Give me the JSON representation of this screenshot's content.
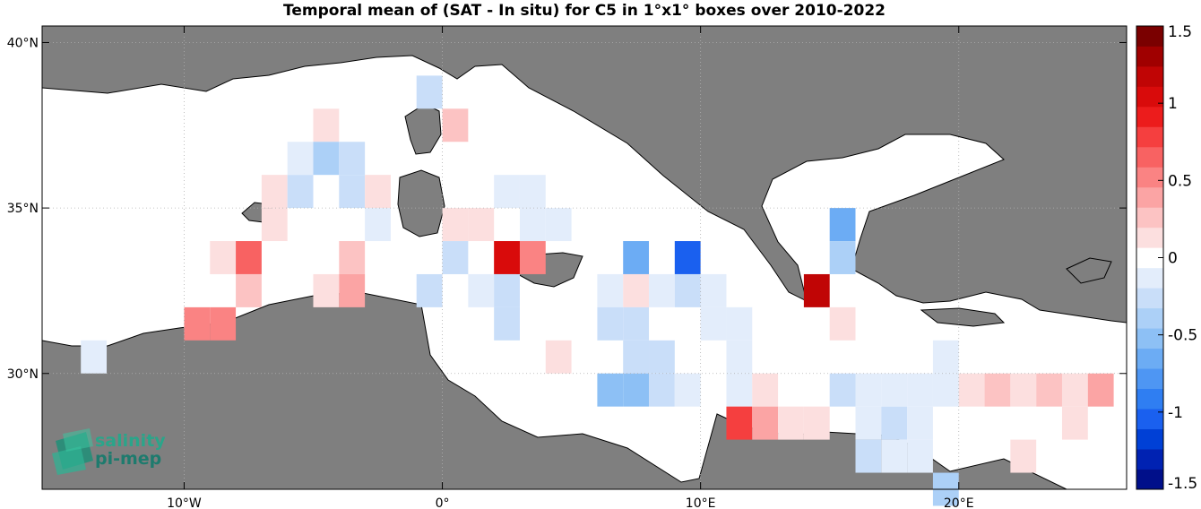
{
  "chart_data": {
    "type": "heatmap",
    "title": "Temporal mean of (SAT - In situ) for C5 in 1°x1° boxes over 2010-2022",
    "xlabel": "",
    "ylabel": "",
    "xlim": [
      -15.5,
      26.5
    ],
    "ylim": [
      26.5,
      40.5
    ],
    "x_ticks": [
      {
        "value": -10,
        "label": "10°W"
      },
      {
        "value": 0,
        "label": "0°"
      },
      {
        "value": 10,
        "label": "10°E"
      },
      {
        "value": 20,
        "label": "20°E"
      }
    ],
    "y_ticks": [
      {
        "value": 30,
        "label": "30°N"
      },
      {
        "value": 35,
        "label": "35°N"
      },
      {
        "value": 40,
        "label": "40°N"
      }
    ],
    "grid": "dotted",
    "colorbar": {
      "min": -1.5,
      "max": 1.5,
      "ticks": [
        {
          "value": 1.5,
          "label": "1.5"
        },
        {
          "value": 1,
          "label": "1"
        },
        {
          "value": 0.5,
          "label": "0.5"
        },
        {
          "value": 0,
          "label": "0"
        },
        {
          "value": -0.5,
          "label": "-0.5"
        },
        {
          "value": -1,
          "label": "-1"
        },
        {
          "value": -1.5,
          "label": "-1.5"
        }
      ],
      "colors": [
        "#000f8a",
        "#0022b2",
        "#0040d6",
        "#1a60ef",
        "#2f7ef2",
        "#4e96f3",
        "#6cacf4",
        "#8dc0f5",
        "#acd0f7",
        "#c9def9",
        "#e3edfb",
        "#ffffff",
        "#fcdfdf",
        "#fcc3c3",
        "#fba4a4",
        "#fa8383",
        "#f86262",
        "#f53f3f",
        "#ec1c1c",
        "#d90b0b",
        "#c00505",
        "#a00000",
        "#7a0000"
      ]
    },
    "cells": [
      {
        "lon": -14,
        "lat": 30.5,
        "value": -0.1
      },
      {
        "lon": -10,
        "lat": 31.5,
        "value": 0.55
      },
      {
        "lon": -9,
        "lat": 31.5,
        "value": 0.55
      },
      {
        "lon": -9,
        "lat": 33.5,
        "value": 0.15
      },
      {
        "lon": -8,
        "lat": 33.5,
        "value": 0.6
      },
      {
        "lon": -8,
        "lat": 32.5,
        "value": 0.3
      },
      {
        "lon": -7,
        "lat": 35.5,
        "value": 0.15
      },
      {
        "lon": -7,
        "lat": 34.5,
        "value": 0.1
      },
      {
        "lon": -5,
        "lat": 37.5,
        "value": 0.1
      },
      {
        "lon": -6,
        "lat": 36.5,
        "value": -0.1
      },
      {
        "lon": -5,
        "lat": 36.5,
        "value": -0.45
      },
      {
        "lon": -4,
        "lat": 36.5,
        "value": -0.3
      },
      {
        "lon": -6,
        "lat": 35.5,
        "value": -0.25
      },
      {
        "lon": -4,
        "lat": 35.5,
        "value": -0.2
      },
      {
        "lon": -3,
        "lat": 35.5,
        "value": 0.1
      },
      {
        "lon": -3,
        "lat": 34.5,
        "value": -0.1
      },
      {
        "lon": -4,
        "lat": 33.5,
        "value": 0.25
      },
      {
        "lon": -5,
        "lat": 32.5,
        "value": 0.15
      },
      {
        "lon": -4,
        "lat": 32.5,
        "value": 0.4
      },
      {
        "lon": -1,
        "lat": 38.5,
        "value": -0.2
      },
      {
        "lon": 0,
        "lat": 37.5,
        "value": 0.3
      },
      {
        "lon": -1,
        "lat": 32.5,
        "value": -0.2
      },
      {
        "lon": 0,
        "lat": 33.5,
        "value": -0.2
      },
      {
        "lon": 0,
        "lat": 34.5,
        "value": 0.1
      },
      {
        "lon": 1,
        "lat": 34.5,
        "value": 0.1
      },
      {
        "lon": 2,
        "lat": 35.5,
        "value": -0.1
      },
      {
        "lon": 3,
        "lat": 35.5,
        "value": -0.1
      },
      {
        "lon": 3,
        "lat": 34.5,
        "value": -0.1
      },
      {
        "lon": 4,
        "lat": 34.5,
        "value": -0.1
      },
      {
        "lon": 2,
        "lat": 33.5,
        "value": 1.1
      },
      {
        "lon": 3,
        "lat": 33.5,
        "value": 0.55
      },
      {
        "lon": 1,
        "lat": 32.5,
        "value": -0.1
      },
      {
        "lon": 2,
        "lat": 32.5,
        "value": -0.2
      },
      {
        "lon": 2,
        "lat": 31.5,
        "value": -0.2
      },
      {
        "lon": 4,
        "lat": 30.5,
        "value": 0.1
      },
      {
        "lon": 6,
        "lat": 32.5,
        "value": -0.1
      },
      {
        "lon": 7,
        "lat": 33.5,
        "value": -0.7
      },
      {
        "lon": 7,
        "lat": 32.5,
        "value": 0.1
      },
      {
        "lon": 8,
        "lat": 32.5,
        "value": -0.1
      },
      {
        "lon": 9,
        "lat": 33.5,
        "value": -1.1
      },
      {
        "lon": 9,
        "lat": 32.5,
        "value": -0.2
      },
      {
        "lon": 10,
        "lat": 32.5,
        "value": -0.15
      },
      {
        "lon": 6,
        "lat": 31.5,
        "value": -0.3
      },
      {
        "lon": 7,
        "lat": 31.5,
        "value": -0.2
      },
      {
        "lon": 10,
        "lat": 31.5,
        "value": -0.1
      },
      {
        "lon": 11,
        "lat": 31.5,
        "value": -0.1
      },
      {
        "lon": 7,
        "lat": 30.5,
        "value": -0.2
      },
      {
        "lon": 8,
        "lat": 30.5,
        "value": -0.2
      },
      {
        "lon": 11,
        "lat": 30.5,
        "value": -0.1
      },
      {
        "lon": 6,
        "lat": 29.5,
        "value": -0.55
      },
      {
        "lon": 7,
        "lat": 29.5,
        "value": -0.55
      },
      {
        "lon": 8,
        "lat": 29.5,
        "value": -0.3
      },
      {
        "lon": 9,
        "lat": 29.5,
        "value": -0.1
      },
      {
        "lon": 11,
        "lat": 29.5,
        "value": -0.1
      },
      {
        "lon": 12,
        "lat": 29.5,
        "value": 0.15
      },
      {
        "lon": 11,
        "lat": 28.5,
        "value": 0.75
      },
      {
        "lon": 12,
        "lat": 28.5,
        "value": 0.45
      },
      {
        "lon": 13,
        "lat": 28.5,
        "value": 0.15
      },
      {
        "lon": 14,
        "lat": 28.5,
        "value": 0.15
      },
      {
        "lon": 15,
        "lat": 34.5,
        "value": -0.65
      },
      {
        "lon": 15,
        "lat": 33.5,
        "value": -0.4
      },
      {
        "lon": 14,
        "lat": 32.5,
        "value": 1.2
      },
      {
        "lon": 15,
        "lat": 31.5,
        "value": 0.1
      },
      {
        "lon": 15,
        "lat": 29.5,
        "value": -0.3
      },
      {
        "lon": 16,
        "lat": 29.5,
        "value": -0.1
      },
      {
        "lon": 16,
        "lat": 28.5,
        "value": -0.15
      },
      {
        "lon": 17,
        "lat": 28.5,
        "value": -0.2
      },
      {
        "lon": 18,
        "lat": 28.5,
        "value": -0.1
      },
      {
        "lon": 16,
        "lat": 27.5,
        "value": -0.25
      },
      {
        "lon": 17,
        "lat": 27.5,
        "value": -0.15
      },
      {
        "lon": 18,
        "lat": 27.5,
        "value": -0.1
      },
      {
        "lon": 17,
        "lat": 29.5,
        "value": -0.1
      },
      {
        "lon": 18,
        "lat": 29.5,
        "value": -0.1
      },
      {
        "lon": 19,
        "lat": 29.5,
        "value": -0.1
      },
      {
        "lon": 19,
        "lat": 30.5,
        "value": -0.1
      },
      {
        "lon": 20,
        "lat": 29.5,
        "value": 0.15
      },
      {
        "lon": 21,
        "lat": 29.5,
        "value": 0.3
      },
      {
        "lon": 22,
        "lat": 29.5,
        "value": 0.15
      },
      {
        "lon": 23,
        "lat": 29.5,
        "value": 0.25
      },
      {
        "lon": 24,
        "lat": 29.5,
        "value": 0.1
      },
      {
        "lon": 25,
        "lat": 29.5,
        "value": 0.45
      },
      {
        "lon": 24,
        "lat": 28.5,
        "value": 0.15
      },
      {
        "lon": 22,
        "lat": 27.5,
        "value": 0.15
      },
      {
        "lon": 19,
        "lat": 26.5,
        "value": -0.4
      }
    ]
  },
  "logo": {
    "line1": "salinity",
    "line2": "pi-mep"
  }
}
